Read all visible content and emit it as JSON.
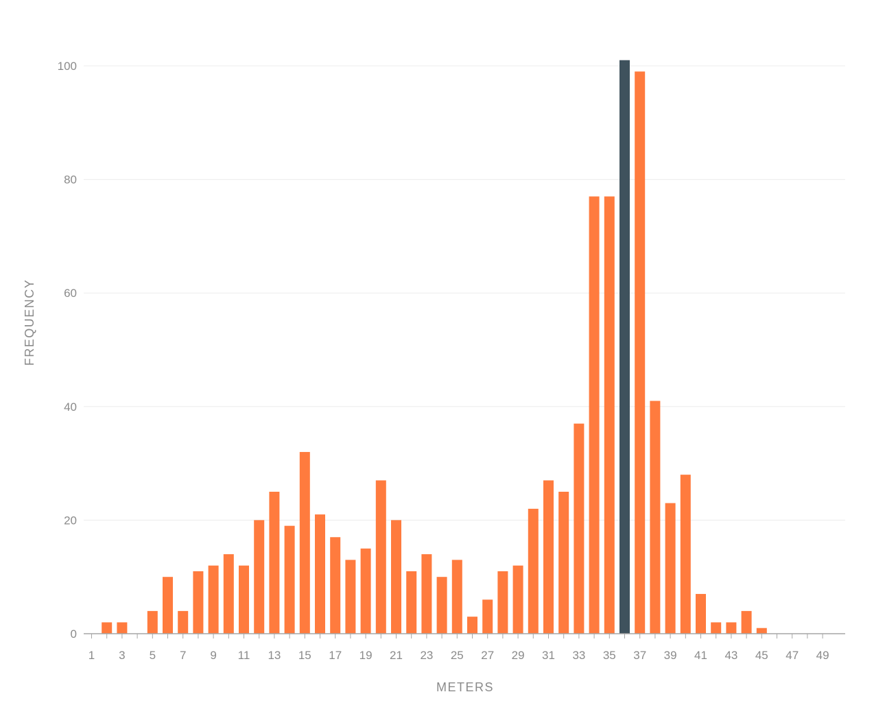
{
  "chart_data": {
    "type": "bar",
    "title": "",
    "xlabel": "METERS",
    "ylabel": "FREQUENCY",
    "x": [
      1,
      2,
      3,
      4,
      5,
      6,
      7,
      8,
      9,
      10,
      11,
      12,
      13,
      14,
      15,
      16,
      17,
      18,
      19,
      20,
      21,
      22,
      23,
      24,
      25,
      26,
      27,
      28,
      29,
      30,
      31,
      32,
      33,
      34,
      35,
      36,
      37,
      38,
      39,
      40,
      41,
      42,
      43,
      44,
      45,
      46,
      47,
      48,
      49
    ],
    "values": [
      0,
      2,
      2,
      0,
      4,
      10,
      4,
      11,
      12,
      14,
      12,
      20,
      25,
      19,
      32,
      21,
      17,
      13,
      15,
      27,
      20,
      11,
      14,
      10,
      13,
      3,
      6,
      11,
      12,
      22,
      27,
      25,
      37,
      77,
      77,
      101,
      99,
      41,
      23,
      28,
      7,
      2,
      2,
      4,
      1,
      0,
      0,
      0,
      0
    ],
    "highlight_x": 36,
    "xticks": [
      "1",
      "3",
      "5",
      "7",
      "9",
      "11",
      "13",
      "15",
      "17",
      "19",
      "21",
      "23",
      "25",
      "27",
      "29",
      "31",
      "33",
      "35",
      "37",
      "39",
      "41",
      "43",
      "45",
      "47",
      "49"
    ],
    "yticks": [
      "0",
      "20",
      "40",
      "60",
      "80",
      "100"
    ],
    "ylim": [
      0,
      100
    ],
    "grid": true,
    "colors": {
      "bar": "#ff7b3e",
      "highlight": "#3f525d",
      "text": "#8a8a8a",
      "grid": "#ececec",
      "axis": "#a6a6a6"
    }
  }
}
